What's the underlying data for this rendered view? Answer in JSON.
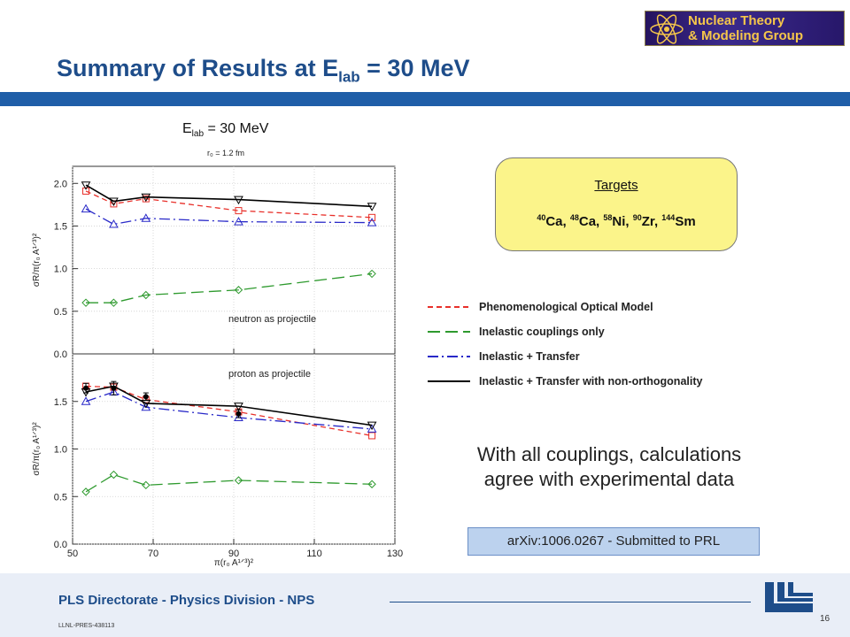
{
  "header": {
    "logo_line1": "Nuclear Theory",
    "logo_line2": "& Modeling Group",
    "title_prefix": "Summary of Results at E",
    "title_sub": "lab",
    "title_suffix": " = 30 MeV"
  },
  "targets": {
    "title": "Targets",
    "items": [
      {
        "mass": "40",
        "symbol": "Ca",
        "sep": ", "
      },
      {
        "mass": "48",
        "symbol": "Ca",
        "sep": ", "
      },
      {
        "mass": "58",
        "symbol": "Ni",
        "sep": ", "
      },
      {
        "mass": "90",
        "symbol": "Zr",
        "sep": ", "
      },
      {
        "mass": "144",
        "symbol": "Sm",
        "sep": ""
      }
    ]
  },
  "legend": [
    {
      "label": "Phenomenological Optical Model",
      "color": "#e8302a",
      "dash": "6,4"
    },
    {
      "label": "Inelastic couplings only",
      "color": "#2e9a2e",
      "dash": "14,6"
    },
    {
      "label": "Inelastic + Transfer",
      "color": "#2929c8",
      "dash": "12,4,2,4"
    },
    {
      "label": "Inelastic + Transfer with non-orthogonality",
      "color": "#000000",
      "dash": ""
    }
  ],
  "conclusion": {
    "line1": "With all couplings, calculations",
    "line2": "agree with experimental data"
  },
  "arxiv": "arXiv:1006.0267 - Submitted to PRL",
  "footer": {
    "directorate": "PLS Directorate - Physics Division - NPS",
    "doc_id": "LLNL-PRES-438113",
    "page": "16"
  },
  "chart_data": {
    "type": "line",
    "title_main": "E",
    "title_sub": "lab",
    "title_rest": " = 30 MeV",
    "subtitle": "r₀ = 1.2 fm",
    "x_ticks": [
      50,
      70,
      90,
      110,
      130
    ],
    "xlim": [
      50,
      130
    ],
    "x_axis_label": "π(r₀ A¹ᐟ³)²",
    "panels": [
      {
        "label": "neutron as projectile",
        "ylim": [
          0,
          2.2
        ],
        "y_ticks": [
          0.0,
          0.5,
          1.0,
          1.5,
          2.0
        ],
        "y_axis_label": "σR/π(r₀ A¹ᐟ³)²",
        "x": [
          53.3,
          60.2,
          68.2,
          91.2,
          124.3
        ],
        "series": [
          {
            "color": "#e8302a",
            "dash": "6,4",
            "marker": "square",
            "values": [
              1.91,
              1.76,
              1.82,
              1.68,
              1.6
            ]
          },
          {
            "color": "#2e9a2e",
            "dash": "14,6",
            "marker": "diamond",
            "values": [
              0.6,
              0.6,
              0.69,
              0.75,
              0.94
            ]
          },
          {
            "color": "#2929c8",
            "dash": "12,4,2,4",
            "marker": "triangle-up",
            "values": [
              1.7,
              1.52,
              1.59,
              1.55,
              1.54
            ]
          },
          {
            "color": "#000000",
            "dash": "",
            "marker": "triangle-down",
            "values": [
              1.98,
              1.79,
              1.84,
              1.81,
              1.73
            ]
          }
        ],
        "experiment": []
      },
      {
        "label": "proton as projectile",
        "ylim": [
          0,
          2.0
        ],
        "y_ticks": [
          0.0,
          0.5,
          1.0,
          1.5
        ],
        "y_axis_label": "σR/π(r₀ A¹ᐟ³)²",
        "x": [
          53.3,
          60.2,
          68.2,
          91.2,
          124.3
        ],
        "series": [
          {
            "color": "#e8302a",
            "dash": "6,4",
            "marker": "square",
            "values": [
              1.66,
              1.65,
              1.52,
              1.39,
              1.14
            ]
          },
          {
            "color": "#2e9a2e",
            "dash": "14,6",
            "marker": "diamond",
            "values": [
              0.55,
              0.73,
              0.62,
              0.67,
              0.63
            ]
          },
          {
            "color": "#2929c8",
            "dash": "12,4,2,4",
            "marker": "triangle-up",
            "values": [
              1.5,
              1.6,
              1.44,
              1.33,
              1.21
            ]
          },
          {
            "color": "#000000",
            "dash": "",
            "marker": "triangle-down",
            "values": [
              1.6,
              1.66,
              1.48,
              1.45,
              1.25
            ]
          }
        ],
        "experiment": [
          {
            "x": 53.3,
            "y": 1.64,
            "err": 0.05
          },
          {
            "x": 60.2,
            "y": 1.64,
            "err": 0.07
          },
          {
            "x": 68.2,
            "y": 1.55,
            "err": 0.04
          },
          {
            "x": 91.2,
            "y": 1.37,
            "err": 0.04
          }
        ]
      }
    ]
  }
}
